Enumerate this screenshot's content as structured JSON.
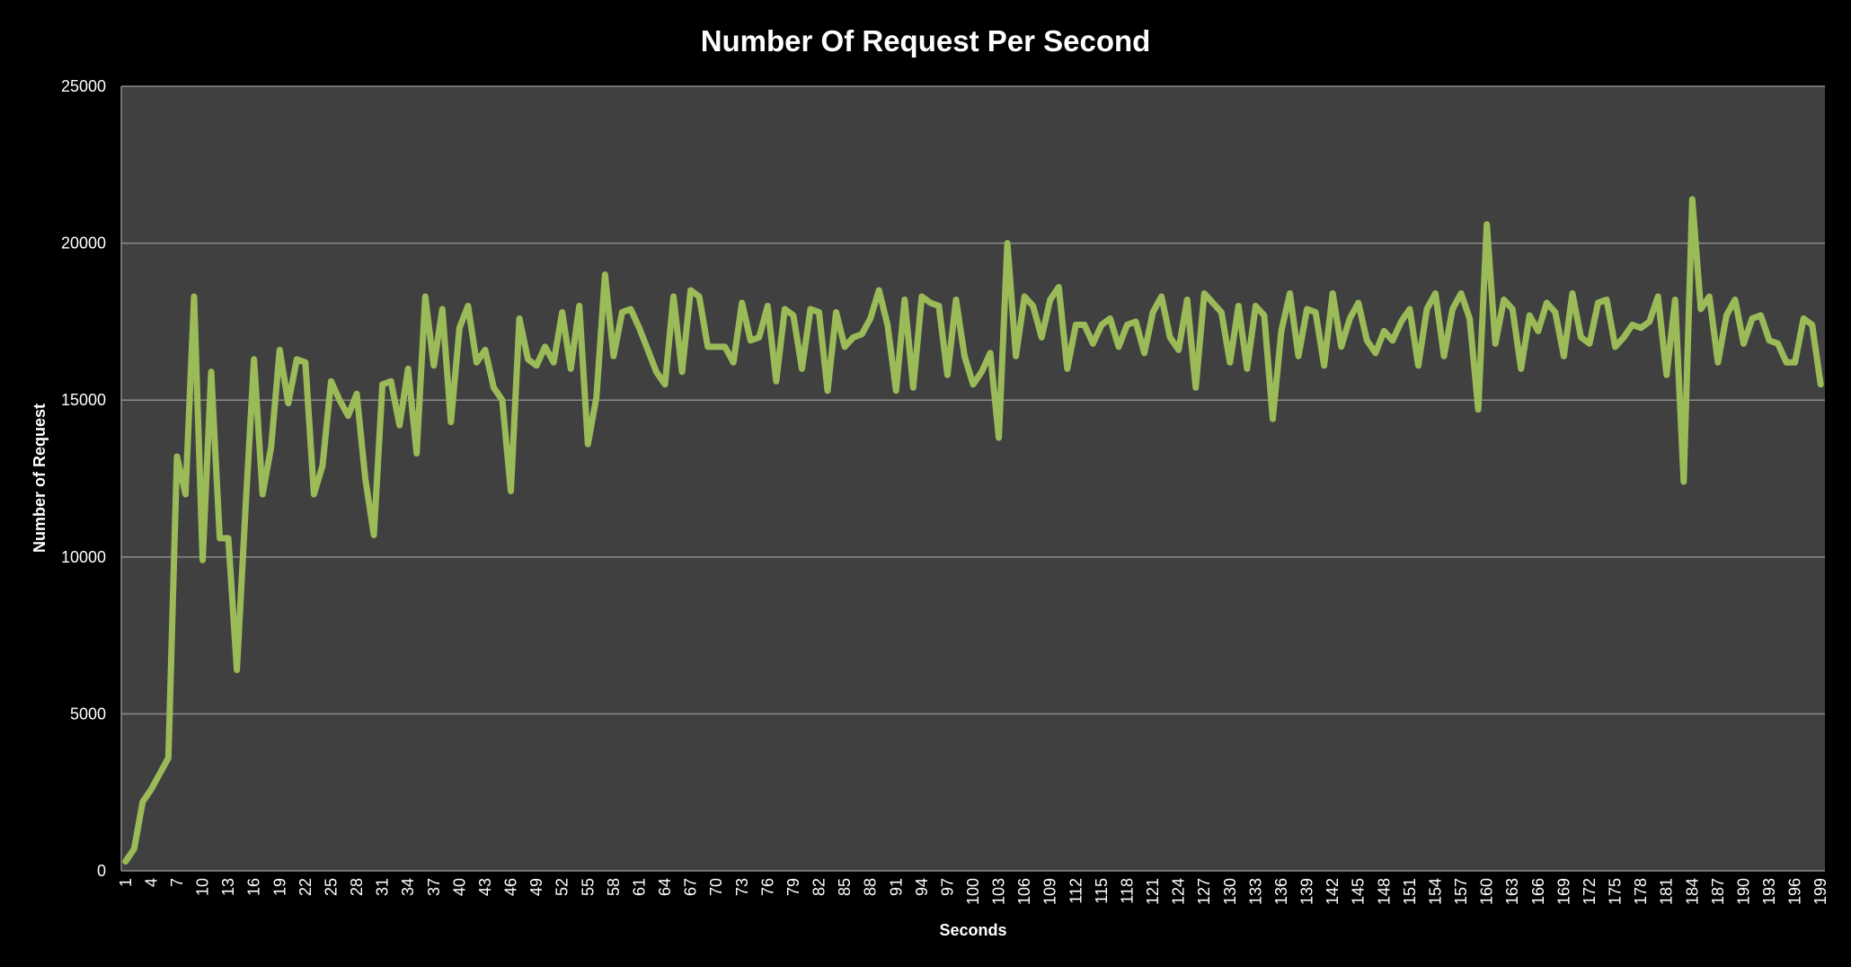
{
  "colors": {
    "background": "#000000",
    "plot_area": "#404040",
    "gridline": "#8c8c8c",
    "series_line": "#9bbb59",
    "text": "#ffffff"
  },
  "chart_data": {
    "type": "line",
    "title": "Number Of Request Per Second",
    "xlabel": "Seconds",
    "ylabel": "Number of Request",
    "ylim": [
      0,
      25000
    ],
    "yticks": [
      0,
      5000,
      10000,
      15000,
      20000,
      25000
    ],
    "grid": true,
    "legend": "none",
    "x_tick_step": 3,
    "series": [
      {
        "values": [
          300,
          700,
          2200,
          2600,
          3100,
          3600,
          13200,
          12000,
          18300,
          9900,
          15900,
          10600,
          10600,
          6400,
          11500,
          16300,
          12000,
          13500,
          16600,
          14900,
          16300,
          16200,
          12000,
          12900,
          15600,
          15000,
          14500,
          15200,
          12500,
          10700,
          15500,
          15600,
          14200,
          16000,
          13300,
          18300,
          16100,
          17900,
          14300,
          17300,
          18000,
          16200,
          16600,
          15400,
          15000,
          12100,
          17600,
          16300,
          16100,
          16700,
          16200,
          17800,
          16000,
          18000,
          13600,
          15100,
          19000,
          16400,
          17800,
          17900,
          17300,
          16600,
          15900,
          15500,
          18300,
          15900,
          18500,
          18300,
          16700,
          16700,
          16700,
          16200,
          18100,
          16900,
          17000,
          18000,
          15600,
          17900,
          17700,
          16000,
          17900,
          17800,
          15300,
          17800,
          16700,
          17000,
          17100,
          17600,
          18500,
          17400,
          15300,
          18200,
          15400,
          18300,
          18100,
          18000,
          15800,
          18200,
          16400,
          15500,
          15900,
          16500,
          13800,
          20000,
          16400,
          18300,
          18000,
          17000,
          18200,
          18600,
          16000,
          17400,
          17400,
          16800,
          17400,
          17600,
          16700,
          17400,
          17500,
          16500,
          17800,
          18300,
          17000,
          16600,
          18200,
          15400,
          18400,
          18100,
          17800,
          16200,
          18000,
          16000,
          18000,
          17700,
          14400,
          17200,
          18400,
          16400,
          17900,
          17800,
          16100,
          18400,
          16700,
          17600,
          18100,
          16900,
          16500,
          17200,
          16900,
          17500,
          17900,
          16100,
          17900,
          18400,
          16400,
          17900,
          18400,
          17600,
          14700,
          20600,
          16800,
          18200,
          17900,
          16000,
          17700,
          17200,
          18100,
          17800,
          16400,
          18400,
          17000,
          16800,
          18100,
          18200,
          16700,
          17000,
          17400,
          17300,
          17500,
          18300,
          15800,
          18200,
          12400,
          21400,
          17900,
          18300,
          16200,
          17700,
          18200,
          16800,
          17600,
          17700,
          16900,
          16800,
          16200,
          16200,
          17600,
          17400,
          15500
        ]
      }
    ]
  }
}
